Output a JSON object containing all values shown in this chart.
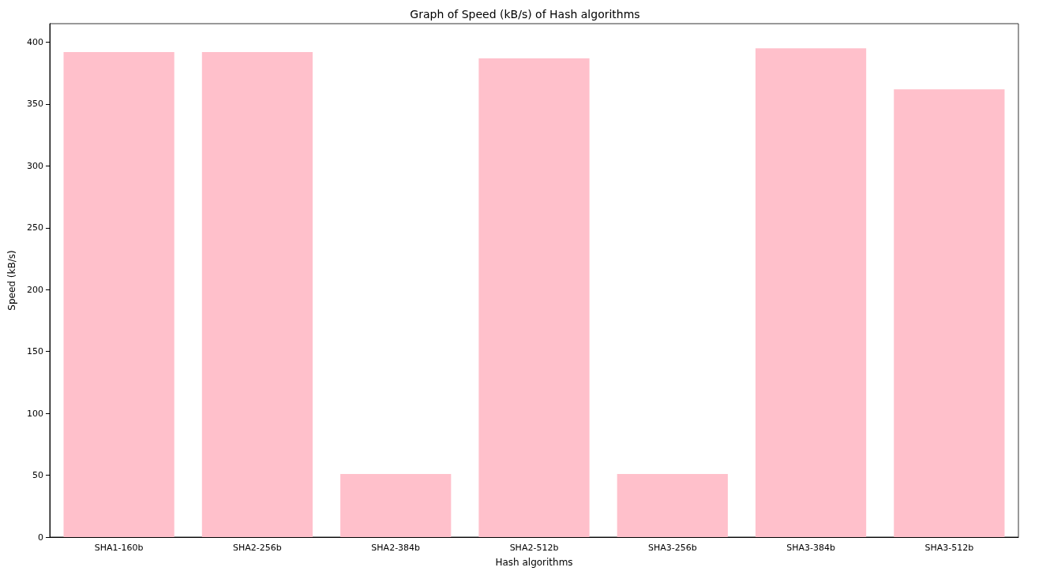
{
  "chart_data": {
    "type": "bar",
    "title": "Graph of Speed (kB/s) of Hash algorithms",
    "xlabel": "Hash algorithms",
    "ylabel": "Speed (kB/s)",
    "categories": [
      "SHA1-160b",
      "SHA2-256b",
      "SHA2-384b",
      "SHA2-512b",
      "SHA3-256b",
      "SHA3-384b",
      "SHA3-512b"
    ],
    "values": [
      392,
      392,
      51,
      387,
      51,
      395,
      362
    ],
    "color": "#ffc0cb",
    "ylim": [
      0,
      415
    ],
    "yticks": [
      0,
      50,
      100,
      150,
      200,
      250,
      300,
      350,
      400
    ],
    "grid": false
  }
}
